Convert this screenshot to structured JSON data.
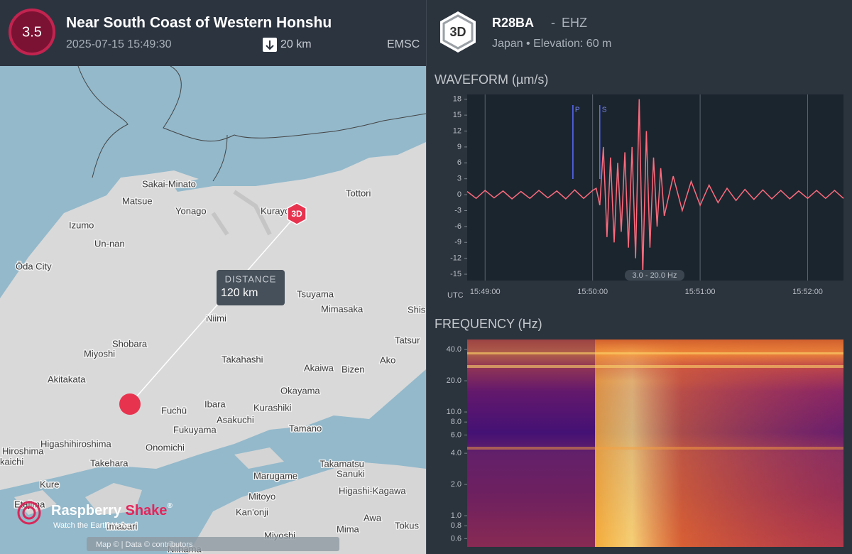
{
  "header": {
    "magnitude": "3.5",
    "title": "Near South Coast of Western Honshu",
    "datetime": "2025-07-15 15:49:30",
    "depth": "20 km",
    "source": "EMSC"
  },
  "station": {
    "badge": "3D",
    "code": "R28BA",
    "separator": "-",
    "channel": "EHZ",
    "location": "Japan • Elevation: 60 m"
  },
  "map": {
    "places": [
      "Sakai-Minato",
      "Matsue",
      "Yonago",
      "Kurayoshi",
      "Tottori",
      "Izumo",
      "Un-nan",
      "Ōda City",
      "Tsuyama",
      "Niimi",
      "Mimasaka",
      "Shis",
      "Tatsur",
      "Shobara",
      "Miyoshi",
      "Takahashi",
      "Akaiwa",
      "Bizen",
      "Ako",
      "Akitakata",
      "Okayama",
      "Kurashiki",
      "Fuchū",
      "Ibara",
      "Asakuchi",
      "Fukuyama",
      "Tamano",
      "Higashihiroshima",
      "Onomichi",
      "Hiroshima",
      "kaichi",
      "Takehara",
      "Takamatsu",
      "Marugame",
      "Sanuki",
      "Kure",
      "Higashi-Kagawa",
      "Mitoyo",
      "Etajima",
      "Kan'onji",
      "Awa",
      "Mima",
      "Tokus",
      "Imabari",
      "Miyoshi",
      "Niihama"
    ],
    "station_marker": "3D",
    "distance_title": "DISTANCE",
    "distance": "120 km",
    "logo_name": "Raspberry",
    "logo_accent": "Shake",
    "logo_mark": "®",
    "logo_tagline": "Watch the Earth Move",
    "attribution": "Map © | Data © contributors"
  },
  "chart_data": [
    {
      "type": "line",
      "title": "WAVEFORM (µm/s)",
      "x_label": "UTC",
      "color": "#ff6b7d",
      "x": [
        56930,
        56935,
        56940,
        56945,
        56950,
        56955,
        56960,
        56965,
        56970,
        56975,
        56980,
        56985,
        56990,
        56995,
        57000,
        57002,
        57004,
        57006,
        57008,
        57010,
        57012,
        57014,
        57016,
        57018,
        57020,
        57022,
        57024,
        57026,
        57028,
        57030,
        57032,
        57034,
        57036,
        57038,
        57040,
        57045,
        57050,
        57055,
        57060,
        57065,
        57070,
        57075,
        57080,
        57085,
        57090,
        57095,
        57100,
        57105,
        57110,
        57115,
        57120,
        57125,
        57130,
        57135,
        57140
      ],
      "values": [
        0.6,
        -0.7,
        0.8,
        -0.6,
        0.7,
        -0.8,
        0.6,
        -0.7,
        0.8,
        -0.6,
        0.7,
        -0.8,
        0.9,
        -0.7,
        0.8,
        1.2,
        -2,
        9,
        -8,
        7,
        -9,
        6,
        -7,
        8,
        -10,
        9,
        -12,
        18,
        -15,
        12,
        -10,
        7,
        -6,
        5,
        -4,
        3.5,
        -3,
        2.5,
        -2,
        1.8,
        -1.5,
        1.2,
        -1.1,
        1,
        -0.9,
        0.9,
        -0.8,
        0.8,
        -0.8,
        0.7,
        -0.7,
        0.8,
        -0.7,
        0.8,
        -0.7
      ],
      "xlim": [
        56930,
        57140
      ],
      "xticks": [
        {
          "value": 56940,
          "label": "15:49:00"
        },
        {
          "value": 57000,
          "label": "15:50:00"
        },
        {
          "value": 57060,
          "label": "15:51:00"
        },
        {
          "value": 57120,
          "label": "15:52:00"
        }
      ],
      "ylim": [
        -16.2,
        18.9
      ],
      "yticks": [
        18,
        15,
        12,
        9,
        6,
        3,
        0,
        -3,
        -6,
        -9,
        -12,
        -15
      ],
      "grid": true,
      "annotations": [
        {
          "label": "P",
          "x": 56989
        },
        {
          "label": "S",
          "x": 57004
        }
      ],
      "filter_label": "3.0 - 20.0 Hz"
    },
    {
      "type": "spectrogram",
      "title": "FREQUENCY (Hz)",
      "log_y": true,
      "ylim": [
        0.5,
        50
      ],
      "yticks": [
        {
          "value": 40,
          "label": "40.0"
        },
        {
          "value": 20,
          "label": "20.0"
        },
        {
          "value": 10,
          "label": "10.0"
        },
        {
          "value": 8,
          "label": "8.0"
        },
        {
          "value": 6,
          "label": "6.0"
        },
        {
          "value": 4,
          "label": "4.0"
        },
        {
          "value": 2,
          "label": "2.0"
        },
        {
          "value": 1,
          "label": "1.0"
        },
        {
          "value": 0.8,
          "label": "0.8"
        },
        {
          "value": 0.6,
          "label": "0.6"
        }
      ]
    }
  ]
}
